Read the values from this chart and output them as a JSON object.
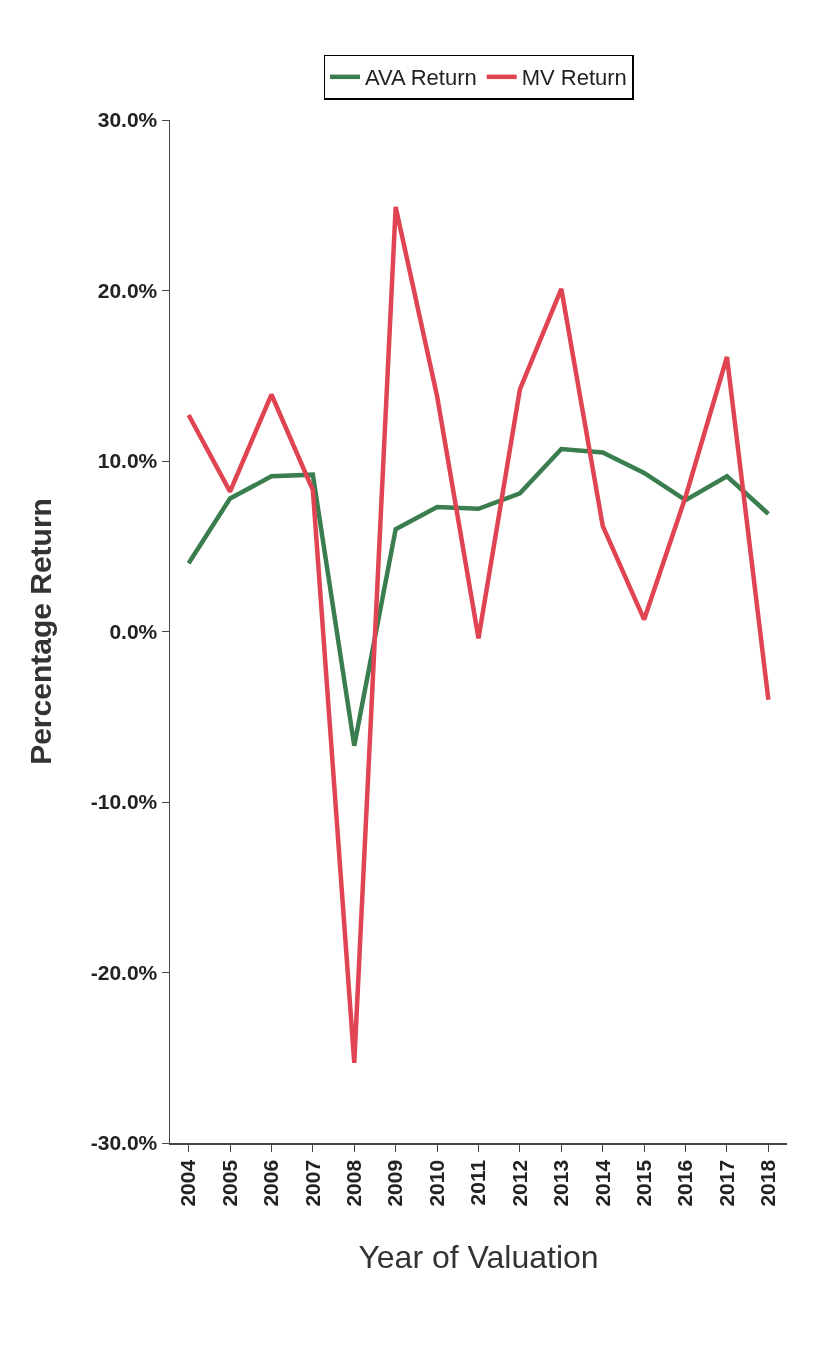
{
  "chart_data": {
    "type": "line",
    "xlabel": "Year of Valuation",
    "ylabel": "Percentage Return",
    "categories": [
      "2004",
      "2005",
      "2006",
      "2007",
      "2008",
      "2009",
      "2010",
      "2011",
      "2012",
      "2013",
      "2014",
      "2015",
      "2016",
      "2017",
      "2018"
    ],
    "series": [
      {
        "name": "AVA Return",
        "color": "#3a7d4f",
        "values": [
          4.0,
          7.8,
          9.1,
          9.2,
          -6.7,
          6.0,
          7.3,
          7.2,
          8.1,
          10.7,
          10.5,
          9.3,
          7.7,
          9.1,
          6.9
        ]
      },
      {
        "name": "MV Return",
        "color": "#e04452",
        "values": [
          12.7,
          8.2,
          13.9,
          8.3,
          -25.3,
          24.9,
          13.8,
          -0.4,
          14.2,
          20.1,
          6.2,
          0.7,
          7.9,
          16.1,
          -4.0
        ]
      }
    ],
    "ylim": [
      -30,
      30
    ],
    "yticks": [
      {
        "value": -30,
        "label": "-30.0%"
      },
      {
        "value": -20,
        "label": "-20.0%"
      },
      {
        "value": -10,
        "label": "-10.0%"
      },
      {
        "value": 0,
        "label": "0.0%"
      },
      {
        "value": 10,
        "label": "10.0%"
      },
      {
        "value": 20,
        "label": "20.0%"
      },
      {
        "value": 30,
        "label": "30.0%"
      }
    ],
    "legend": "right"
  }
}
